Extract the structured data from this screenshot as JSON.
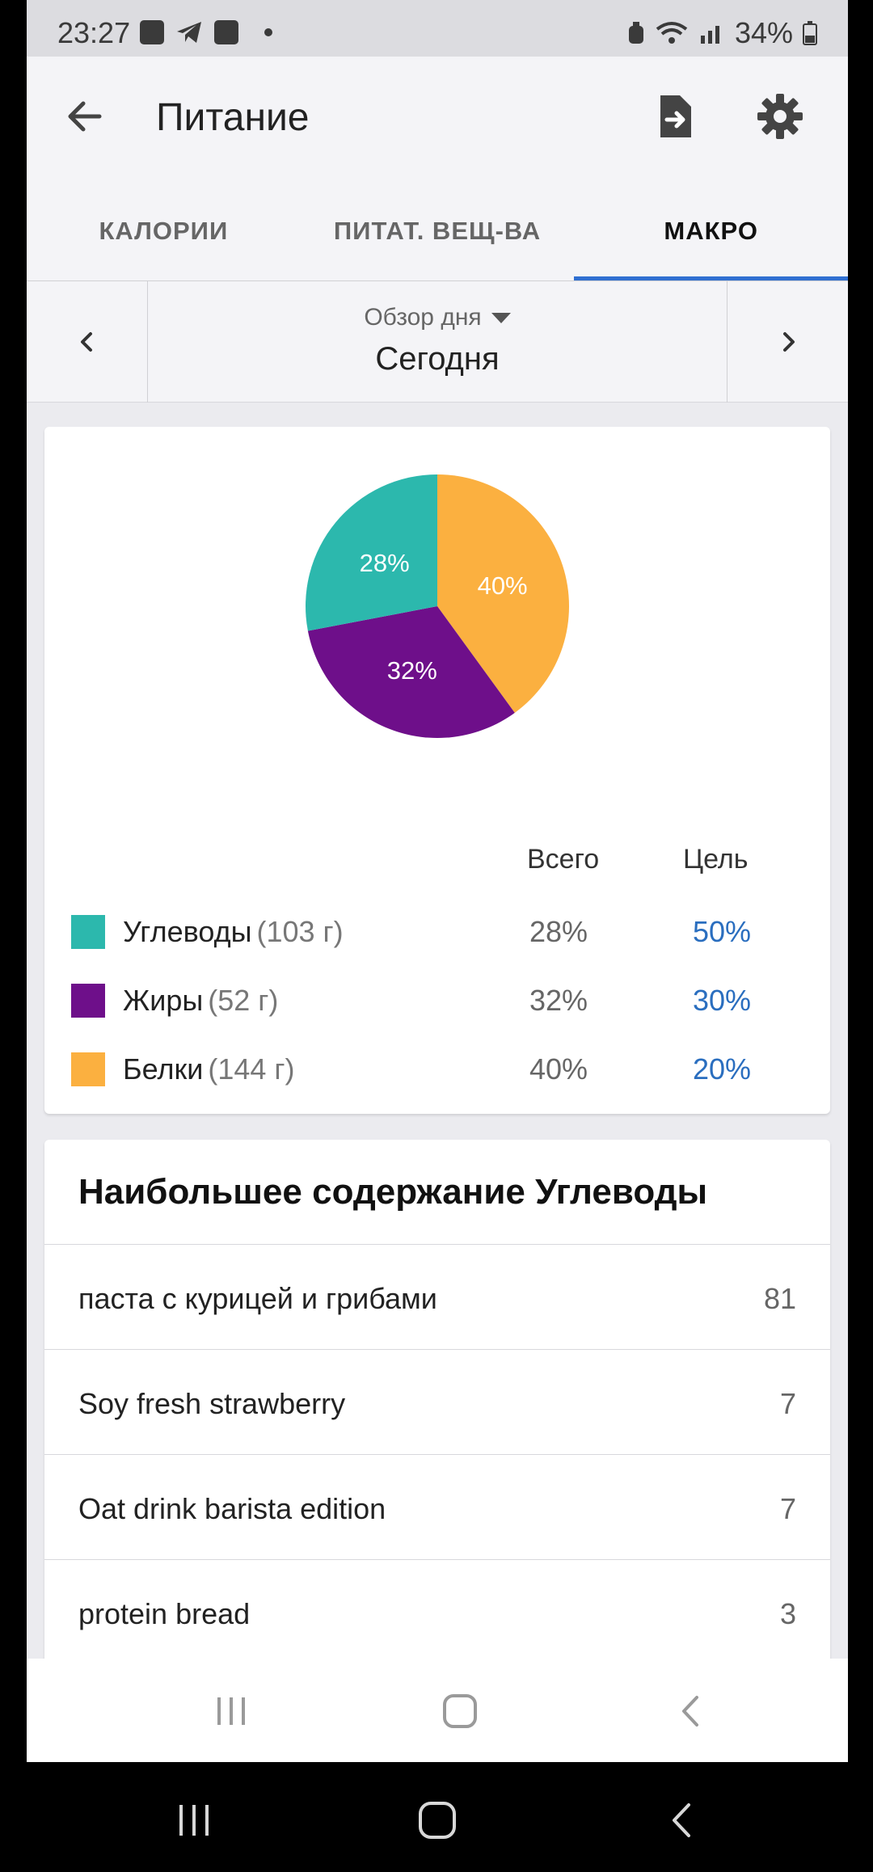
{
  "status_bar": {
    "time": "23:27",
    "battery": "34%"
  },
  "app_bar": {
    "title": "Питание"
  },
  "tabs": [
    {
      "label": "КАЛОРИИ",
      "active": false
    },
    {
      "label": "ПИТАТ. ВЕЩ-ВА",
      "active": false
    },
    {
      "label": "МАКРО",
      "active": true
    }
  ],
  "date_nav": {
    "period": "Обзор дня",
    "day": "Сегодня"
  },
  "macros": {
    "header_total": "Всего",
    "header_goal": "Цель",
    "rows": [
      {
        "name": "Углеводы",
        "grams": "(103 г)",
        "total": "28%",
        "goal": "50%",
        "color": "#2cb8ad"
      },
      {
        "name": "Жиры",
        "grams": "(52 г)",
        "total": "32%",
        "goal": "30%",
        "color": "#6e0f8a"
      },
      {
        "name": "Белки",
        "grams": "(144 г)",
        "total": "40%",
        "goal": "20%",
        "color": "#fbb040"
      }
    ]
  },
  "chart_data": {
    "type": "pie",
    "categories": [
      "Белки",
      "Жиры",
      "Углеводы"
    ],
    "values": [
      40,
      32,
      28
    ],
    "labels": [
      "40%",
      "32%",
      "28%"
    ],
    "colors": [
      "#fbb040",
      "#6e0f8a",
      "#2cb8ad"
    ]
  },
  "top_list": {
    "heading": "Наибольшее содержание Углеводы",
    "items": [
      {
        "name": "паста с курицей и грибами",
        "value": "81"
      },
      {
        "name": "Soy fresh strawberry",
        "value": "7"
      },
      {
        "name": "Oat drink barista edition",
        "value": "7"
      },
      {
        "name": "protein bread",
        "value": "3"
      }
    ]
  },
  "icons": {
    "back": "arrow-left-icon",
    "export": "file-export-icon",
    "settings": "gear-icon",
    "prev": "chevron-left-icon",
    "next": "chevron-right-icon",
    "recent": "recent-apps-icon",
    "home": "home-icon",
    "nav_back": "nav-back-icon"
  },
  "colors": {
    "accent": "#2f6fd1",
    "goal_text": "#2a6ebf"
  }
}
